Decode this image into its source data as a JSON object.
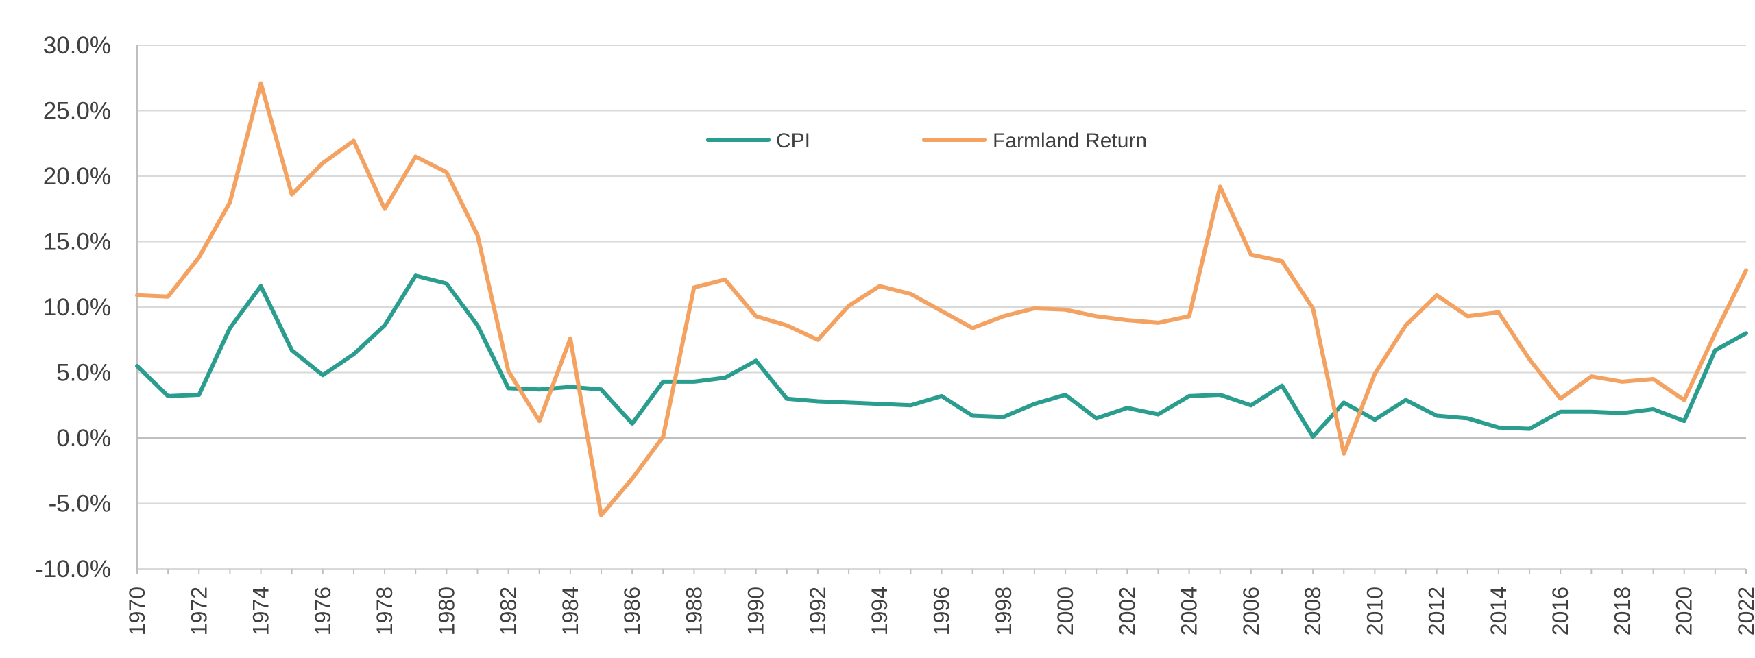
{
  "chart_data": {
    "type": "line",
    "title": "",
    "xlabel": "",
    "ylabel": "",
    "ylim": [
      -10,
      30
    ],
    "xlim": [
      1970,
      2022
    ],
    "grid": "horizontal",
    "legend_position": "top-center",
    "y_ticks": [
      "-10.0%",
      "-5.0%",
      "0.0%",
      "5.0%",
      "10.0%",
      "15.0%",
      "20.0%",
      "25.0%",
      "30.0%"
    ],
    "x_ticks": [
      "1970",
      "1972",
      "1974",
      "1976",
      "1978",
      "1980",
      "1982",
      "1984",
      "1986",
      "1988",
      "1990",
      "1992",
      "1994",
      "1996",
      "1998",
      "2000",
      "2002",
      "2004",
      "2006",
      "2008",
      "2010",
      "2012",
      "2014",
      "2016",
      "2018",
      "2020",
      "2022"
    ],
    "x": [
      1970,
      1971,
      1972,
      1973,
      1974,
      1975,
      1976,
      1977,
      1978,
      1979,
      1980,
      1981,
      1982,
      1983,
      1984,
      1985,
      1986,
      1987,
      1988,
      1989,
      1990,
      1991,
      1992,
      1993,
      1994,
      1995,
      1996,
      1997,
      1998,
      1999,
      2000,
      2001,
      2002,
      2003,
      2004,
      2005,
      2006,
      2007,
      2008,
      2009,
      2010,
      2011,
      2012,
      2013,
      2014,
      2015,
      2016,
      2017,
      2018,
      2019,
      2020,
      2021,
      2022
    ],
    "series": [
      {
        "name": "CPI",
        "color": "#2a9d8f",
        "values": [
          5.5,
          3.2,
          3.3,
          8.4,
          11.6,
          6.7,
          4.8,
          6.4,
          8.6,
          12.4,
          11.8,
          8.6,
          3.8,
          3.7,
          3.9,
          3.7,
          1.1,
          4.3,
          4.3,
          4.6,
          5.9,
          3.0,
          2.8,
          2.7,
          2.6,
          2.5,
          3.2,
          1.7,
          1.6,
          2.6,
          3.3,
          1.5,
          2.3,
          1.8,
          3.2,
          3.3,
          2.5,
          4.0,
          0.1,
          2.7,
          1.4,
          2.9,
          1.7,
          1.5,
          0.8,
          0.7,
          2.0,
          2.0,
          1.9,
          2.2,
          1.3,
          6.7,
          8.0
        ]
      },
      {
        "name": "Farmland Return",
        "color": "#f4a261",
        "values": [
          10.9,
          10.8,
          13.8,
          18.0,
          27.1,
          18.6,
          21.0,
          22.7,
          17.5,
          21.5,
          20.3,
          15.5,
          5.1,
          1.3,
          7.6,
          -5.9,
          -3.1,
          0.1,
          11.5,
          12.1,
          9.3,
          8.6,
          7.5,
          10.1,
          11.6,
          11.0,
          9.7,
          8.4,
          9.3,
          9.9,
          9.8,
          9.3,
          9.0,
          8.8,
          9.3,
          19.2,
          14.0,
          13.5,
          9.9,
          -1.2,
          4.9,
          8.6,
          10.9,
          9.3,
          9.6,
          6.0,
          3.0,
          4.7,
          4.3,
          4.5,
          2.9,
          8.0,
          12.8
        ]
      }
    ]
  }
}
